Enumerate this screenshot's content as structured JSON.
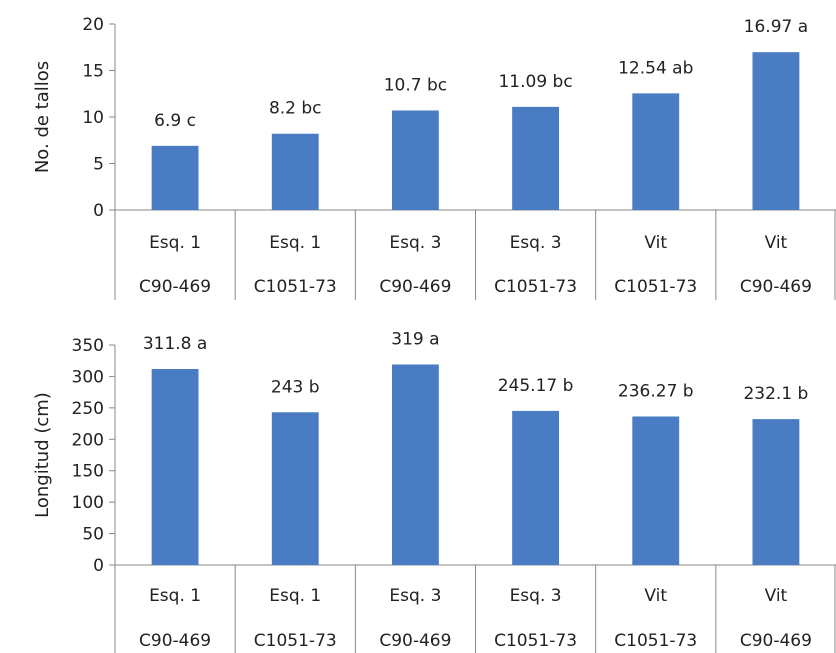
{
  "chart_data": [
    {
      "type": "bar",
      "ylabel": "No. de tallos",
      "ylim": [
        0,
        20
      ],
      "yticks": [
        0,
        5,
        10,
        15,
        20
      ],
      "categories": [
        {
          "treatment": "Esq. 1",
          "variety": "C90-469"
        },
        {
          "treatment": "Esq. 1",
          "variety": "C1051-73"
        },
        {
          "treatment": "Esq. 3",
          "variety": "C90-469"
        },
        {
          "treatment": "Esq. 3",
          "variety": "C1051-73"
        },
        {
          "treatment": "Vit",
          "variety": "C1051-73"
        },
        {
          "treatment": "Vit",
          "variety": "C90-469"
        }
      ],
      "values": [
        6.9,
        8.2,
        10.7,
        11.09,
        12.54,
        16.97
      ],
      "data_labels": [
        "6.9 c",
        "8.2 bc",
        "10.7 bc",
        "11.09 bc",
        "12.54 ab",
        "16.97 a"
      ],
      "bar_color": "#4A7CC4",
      "grid": false
    },
    {
      "type": "bar",
      "ylabel": "Longitud (cm)",
      "ylim": [
        0,
        350
      ],
      "yticks": [
        0,
        50,
        100,
        150,
        200,
        250,
        300,
        350
      ],
      "categories": [
        {
          "treatment": "Esq. 1",
          "variety": "C90-469"
        },
        {
          "treatment": "Esq. 1",
          "variety": "C1051-73"
        },
        {
          "treatment": "Esq. 3",
          "variety": "C90-469"
        },
        {
          "treatment": "Esq. 3",
          "variety": "C1051-73"
        },
        {
          "treatment": "Vit",
          "variety": "C1051-73"
        },
        {
          "treatment": "Vit",
          "variety": "C90-469"
        }
      ],
      "values": [
        311.8,
        243,
        319,
        245.17,
        236.27,
        232.1
      ],
      "data_labels": [
        "311.8 a",
        "243 b",
        "319 a",
        "245.17 b",
        "236.27 b",
        "232.1 b"
      ],
      "bar_color": "#4A7CC4",
      "grid": false
    }
  ]
}
